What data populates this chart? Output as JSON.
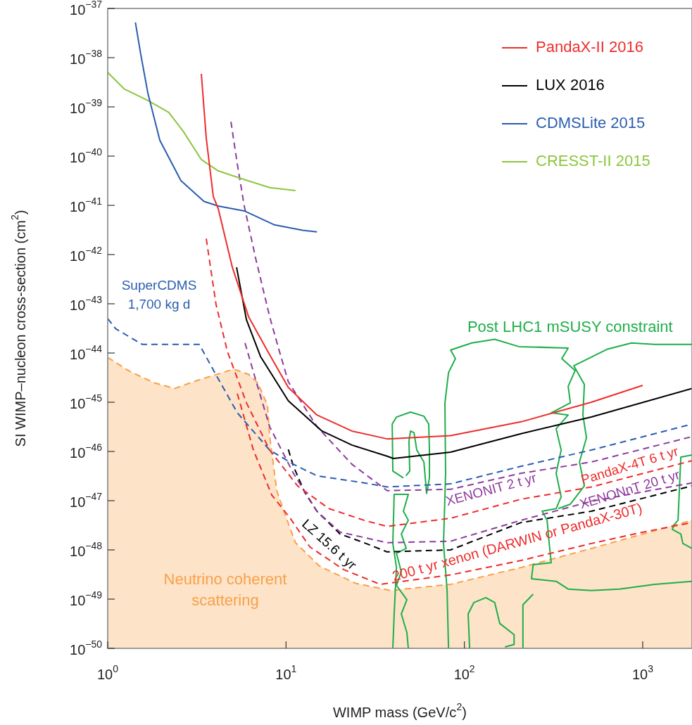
{
  "chart_data": {
    "type": "line",
    "xlabel": "WIMP mass (GeV/c$^{2}$)",
    "ylabel": "SI WIMP–nucleon cross-section (cm$^{2}$)",
    "log": "xy",
    "legend": "top right",
    "marker": "none",
    "xlim": [
      1,
      1890
    ],
    "ylim": [
      1e-50,
      1e-37
    ],
    "xticks": [
      {
        "value": 1,
        "label": "10$^{0}$"
      },
      {
        "value": 10,
        "label": "10$^{1}$"
      },
      {
        "value": 100,
        "label": "10$^{2}$"
      },
      {
        "value": 1000,
        "label": "10$^{3}$"
      }
    ],
    "yticks": [
      {
        "value": 1e-37,
        "label": "10$^{−37}$"
      },
      {
        "value": 1e-38,
        "label": "10$^{−38}$"
      },
      {
        "value": 1e-39,
        "label": "10$^{−39}$"
      },
      {
        "value": 1e-40,
        "label": "10$^{−40}$"
      },
      {
        "value": 1e-41,
        "label": "10$^{−41}$"
      },
      {
        "value": 1e-42,
        "label": "10$^{−42}$"
      },
      {
        "value": 1e-43,
        "label": "10$^{−43}$"
      },
      {
        "value": 1e-44,
        "label": "10$^{−44}$"
      },
      {
        "value": 1e-45,
        "label": "10$^{−45}$"
      },
      {
        "value": 1e-46,
        "label": "10$^{−46}$"
      },
      {
        "value": 1e-47,
        "label": "10$^{−47}$"
      },
      {
        "value": 1e-48,
        "label": "10$^{−48}$"
      },
      {
        "value": 1e-49,
        "label": "10$^{−49}$"
      },
      {
        "value": 1e-50,
        "label": "10$^{−50}$"
      }
    ],
    "series": [
      {
        "name": "PandaX-II 2016",
        "color": "#ee2c2c",
        "line_style": "solid",
        "x": [
          3.35,
          3.57,
          3.91,
          4.17,
          5.0,
          6.16,
          7.87,
          10.3,
          14.9,
          23.4,
          36.9,
          83.7,
          208,
          515,
          1000
        ],
        "values": [
          4.7e-39,
          2.3e-40,
          1.5e-41,
          8.5e-42,
          5.5e-43,
          5.5e-44,
          1.1e-44,
          2e-45,
          5.5e-46,
          2.6e-46,
          1.8e-46,
          2.1e-46,
          4e-46,
          1e-45,
          2.2e-45
        ]
      },
      {
        "name": "LUX 2016",
        "color": "#000000",
        "line_style": "solid",
        "x": [
          5.28,
          6.0,
          7.19,
          10.3,
          15.9,
          23.4,
          36.9,
          40,
          83.7,
          208,
          515,
          1890
        ],
        "values": [
          5.5e-43,
          4.7e-44,
          8.5e-45,
          1.07e-45,
          2.6e-46,
          1.35e-46,
          8e-47,
          7.2e-47,
          9.7e-47,
          2.3e-46,
          5e-46,
          1.9e-45
        ]
      },
      {
        "name": "CDMSLite 2015",
        "color": "#2a5db0",
        "line_style": "solid",
        "x": [
          1.43,
          1.53,
          1.68,
          1.96,
          2.57,
          3.47,
          4.17,
          5.83,
          8.62,
          12.4,
          14.9
        ],
        "values": [
          5.2e-38,
          1.2e-38,
          1.9e-39,
          2.1e-40,
          3.2e-41,
          1.2e-41,
          9.7e-42,
          7.7e-42,
          4e-42,
          3.1e-42,
          2.9e-42
        ]
      },
      {
        "name": "CRESST-II 2015",
        "color": "#8cc63f",
        "line_style": "solid",
        "x": [
          1,
          1.24,
          1.68,
          2.2,
          2.65,
          3.35,
          4.17,
          5.47,
          8.09,
          11.3
        ],
        "values": [
          5e-39,
          2.3e-39,
          1.35e-39,
          7.7e-40,
          3.2e-40,
          8.5e-41,
          5e-41,
          3.6e-41,
          2.3e-41,
          2e-41
        ]
      },
      {
        "name": "SuperCDMS 1,700 kg d",
        "color": "#2a5db0",
        "line_style": "dashed",
        "x": [
          1,
          1.11,
          1.56,
          3.26,
          4.05,
          5.33,
          8.09,
          11.0,
          14.9,
          27.4,
          36.9,
          83.7,
          208,
          515,
          1890
        ],
        "values": [
          5e-44,
          3.1e-44,
          1.5e-44,
          1.5e-44,
          3.6e-45,
          6.1e-46,
          1.07e-46,
          5.5e-47,
          3.2e-47,
          2.3e-47,
          1.9e-47,
          2.2e-47,
          5e-47,
          1.07e-46,
          3.6e-46
        ]
      },
      {
        "name": "XENONIT 2 t yr",
        "color": "#8e3b9e",
        "line_style": "dashed",
        "x": [
          4.91,
          5.33,
          5.83,
          6.75,
          8.09,
          9.02,
          10.3,
          14.9,
          23.4,
          36.9,
          83.7,
          208,
          515,
          1890
        ],
        "values": [
          5e-40,
          6.9e-41,
          9.7e-42,
          8.5e-43,
          5.5e-44,
          1.35e-44,
          2.6e-45,
          3.2e-46,
          5.5e-47,
          1.6e-47,
          1.7e-47,
          3.6e-47,
          6.1e-47,
          2e-46
        ]
      },
      {
        "name": "PandaX-4T 6 t yr",
        "color": "#ee2c2c",
        "line_style": "dashed",
        "x": [
          3.57,
          4.05,
          4.69,
          6.0,
          8.09,
          11.6,
          17.4,
          27.4,
          36.9,
          83.7,
          208,
          515,
          1890
        ],
        "values": [
          2.1e-42,
          9.7e-44,
          1.07e-44,
          9.7e-46,
          1.07e-46,
          2e-47,
          6.9e-48,
          4e-48,
          3e-48,
          4.4e-48,
          1.07e-47,
          1.9e-47,
          6.5e-47
        ]
      },
      {
        "name": "XENONnT 20 t yr",
        "color": "#8e3b9e",
        "line_style": "dashed",
        "x": [
          5.89,
          6.75,
          8.09,
          11.0,
          14.9,
          20.1,
          36.9,
          83.7,
          208,
          515,
          1890
        ],
        "values": [
          1.6e-44,
          2.9e-45,
          3.2e-46,
          3.6e-47,
          6.1e-48,
          2.3e-48,
          1.4e-48,
          1.5e-48,
          4e-48,
          9.7e-48,
          2.3e-47
        ]
      },
      {
        "name": "LZ 15.6 t yr",
        "color": "#000000",
        "line_style": "dashed",
        "x": [
          10.3,
          11.0,
          12.7,
          14.9,
          20.1,
          27.4,
          36.9,
          83.7,
          208,
          515,
          1890
        ],
        "values": [
          1.1e-46,
          5e-47,
          1.5e-47,
          6.1e-48,
          2.1e-48,
          1.4e-48,
          9.1e-49,
          1e-48,
          3.6e-48,
          6.1e-48,
          2e-47
        ]
      },
      {
        "name": "200 t yr xenon (DARWIN or PandaX-30T)",
        "color": "#ee2c2c",
        "line_style": "dashed",
        "x": [
          5.33,
          6.56,
          8.32,
          10.6,
          13.6,
          21.0,
          33.7,
          83.7,
          208,
          515,
          948,
          1890
        ],
        "values": [
          1.5e-45,
          1.07e-46,
          1.3e-47,
          4.3e-48,
          1.15e-48,
          4e-49,
          2e-49,
          3.1e-49,
          6.1e-49,
          1.35e-48,
          2.2e-48,
          3.6e-48
        ]
      },
      {
        "name": "Neutrino coherent scattering",
        "type": "area",
        "color": "#f7a14a",
        "line_style": "dashed",
        "x": [
          1,
          1.32,
          1.81,
          2.37,
          3.11,
          5.09,
          6.16,
          6.93,
          7.87,
          8.09,
          8.87,
          10.07,
          11.3,
          15.4,
          24.5,
          38.6,
          83.7,
          208,
          515,
          1890
        ],
        "values": [
          8.1e-45,
          4.3e-45,
          2.5e-45,
          1.9e-45,
          2.7e-45,
          4.7e-45,
          3.7e-45,
          2.5e-45,
          8.7e-46,
          2.1e-46,
          1.6e-47,
          4.3e-48,
          1.4e-48,
          4.7e-49,
          2.1e-49,
          1.5e-49,
          2e-49,
          4.4e-49,
          1.07e-48,
          4e-48
        ]
      },
      {
        "name": "Post LHC1 mSUSY constraint",
        "color": "#1fae4a",
        "line_style": "solid",
        "x": [
          81.5,
          80.0,
          76.4,
          78.5,
          77.8,
          81.5,
          89.1,
          83.7,
          110,
          148,
          202,
          382,
          352,
          418,
          382,
          393,
          307,
          382,
          327,
          349,
          327,
          349,
          327,
          273,
          291,
          299,
          307,
          243,
          238,
          327,
          382,
          515,
          741,
          1167,
          1890,
          null,
          39.7,
          40.4,
          41.6,
          39.7,
          40.4,
          48.5,
          45.5,
          48.5,
          44.3,
          47.2,
          41.6,
          44.3,
          41.6,
          47.6,
          44.3,
          47.6,
          48.5,
          null,
          1890,
          1167,
          865,
          635,
          411,
          471,
          462,
          484,
          442,
          471,
          393,
          336,
          null,
          1890,
          1636,
          1578,
          1494,
          1466,
          1636,
          1680,
          1890,
          null,
          107,
          105,
          113,
          132,
          148,
          158,
          190,
          190,
          169,
          null,
          213,
          213,
          243,
          null,
          45.5,
          39.7,
          39.4,
          41.6,
          49.9,
          59.3,
          63.1,
          63.7,
          63.7,
          61.4,
          59.3,
          54.1,
          52.2,
          49.9,
          48.9,
          49.4,
          47.0
        ],
        "values": [
          1e-50,
          1.5e-49,
          1.35e-48,
          3.6e-47,
          9.7e-46,
          4e-45,
          7.7e-45,
          1.15e-44,
          1.6e-44,
          1.9e-44,
          1.35e-44,
          1.26e-44,
          7.7e-45,
          4.4e-45,
          2.1e-45,
          9.7e-46,
          6.1e-46,
          5.5e-46,
          2.9e-46,
          1.07e-46,
          3.6e-47,
          1.2e-47,
          6.9e-48,
          6.1e-48,
          4e-48,
          1.35e-48,
          5.5e-49,
          5e-49,
          2.6e-49,
          2.3e-49,
          1.6e-49,
          1.5e-49,
          1.6e-49,
          2e-49,
          2.3e-49,
          null,
          1e-50,
          5e-50,
          4.4e-49,
          1.35e-48,
          1.35e-47,
          1.35e-47,
          6.1e-48,
          4e-48,
          2.1e-48,
          1.07e-48,
          8.5e-49,
          3.6e-49,
          1.9e-49,
          9.7e-50,
          5e-50,
          2.1e-50,
          1e-50,
          null,
          1.5e-44,
          1.5e-44,
          1.6e-44,
          1.2e-44,
          5.5e-45,
          2.3e-45,
          5.5e-46,
          1.9e-46,
          6.1e-47,
          2e-47,
          8.5e-48,
          6.9e-48,
          null,
          8.5e-47,
          7.7e-47,
          4e-48,
          3.2e-48,
          2.6e-48,
          2.1e-48,
          1.35e-48,
          1.07e-48,
          null,
          1e-50,
          5e-50,
          8.5e-50,
          1.07e-49,
          8.5e-50,
          3.2e-50,
          1.9e-50,
          1.2e-50,
          1.07e-50,
          null,
          1e-50,
          7.7e-50,
          1.26e-49,
          null,
          2.9e-47,
          4e-47,
          3.6e-46,
          5e-46,
          6.3e-46,
          5.2e-46,
          3.6e-46,
          1.07e-46,
          2.9e-47,
          1.4e-47,
          6.1e-47,
          1.07e-46,
          2.4e-46,
          2.6e-46,
          1.6e-46,
          4e-47,
          3.2e-47
        ]
      }
    ]
  }
}
